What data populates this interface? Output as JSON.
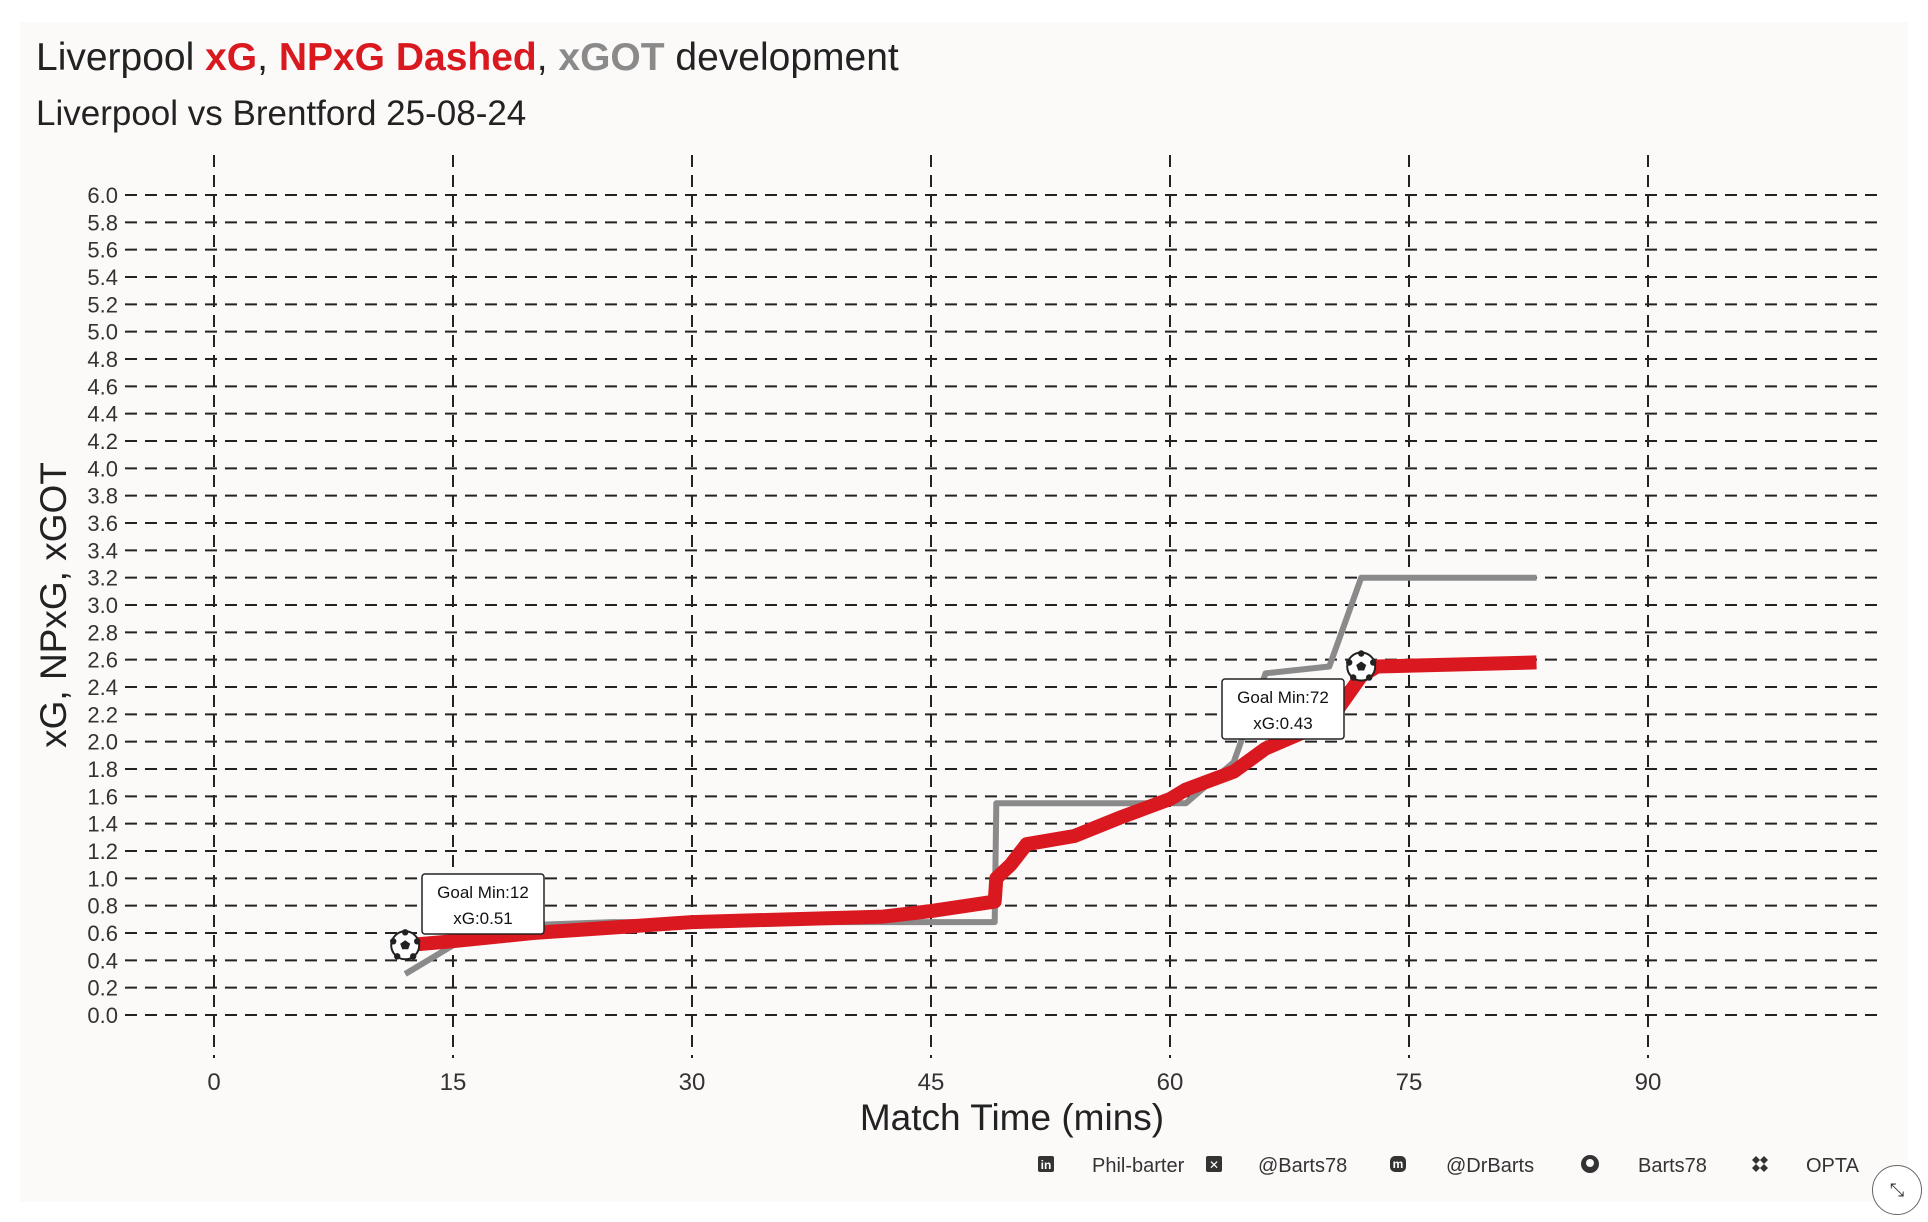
{
  "colors": {
    "xg": "#d9181f",
    "xgot": "#8a8a8a",
    "text": "#222222",
    "grid": "#222222",
    "background": "#fcf9f9"
  },
  "header": {
    "title_parts": [
      {
        "text": "Liverpool ",
        "color": "#222222",
        "bold": false
      },
      {
        "text": "xG",
        "color": "#d9181f",
        "bold": true
      },
      {
        "text": ", ",
        "color": "#222222",
        "bold": false
      },
      {
        "text": "NPxG Dashed",
        "color": "#d9181f",
        "bold": true
      },
      {
        "text": ", ",
        "color": "#222222",
        "bold": false
      },
      {
        "text": "xGOT",
        "color": "#8a8a8a",
        "bold": true
      },
      {
        "text": " development",
        "color": "#222222",
        "bold": false
      }
    ],
    "subtitle": "Liverpool vs Brentford 25-08-24"
  },
  "chart_data": {
    "type": "line",
    "title": "Liverpool xG, NPxG Dashed, xGOT development",
    "subtitle": "Liverpool vs Brentford 25-08-24",
    "xlabel": "Match Time (mins)",
    "ylabel": "xG, NPxG, xGOT",
    "xlim": [
      -10,
      105
    ],
    "ylim": [
      0,
      6
    ],
    "x_ticks": [
      0,
      15,
      30,
      45,
      60,
      75,
      90
    ],
    "y_ticks": [
      0.0,
      0.2,
      0.4,
      0.6,
      0.8,
      1.0,
      1.2,
      1.4,
      1.6,
      1.8,
      2.0,
      2.2,
      2.4,
      2.6,
      2.8,
      3.0,
      3.2,
      3.4,
      3.6,
      3.8,
      4.0,
      4.2,
      4.4,
      4.6,
      4.8,
      5.0,
      5.2,
      5.4,
      5.6,
      5.8,
      6.0
    ],
    "grid": true,
    "grid_style": "dashed",
    "series": [
      {
        "color": "#d9181f",
        "points": [
          [
            12,
            0.51
          ],
          [
            15,
            0.54
          ],
          [
            20,
            0.6
          ],
          [
            30,
            0.68
          ],
          [
            42,
            0.72
          ],
          [
            45,
            0.76
          ],
          [
            49,
            0.83
          ],
          [
            49.1,
            1.0
          ],
          [
            50,
            1.1
          ],
          [
            51,
            1.25
          ],
          [
            54,
            1.31
          ],
          [
            57,
            1.45
          ],
          [
            60,
            1.58
          ],
          [
            61,
            1.65
          ],
          [
            64,
            1.78
          ],
          [
            66,
            1.95
          ],
          [
            69,
            2.1
          ],
          [
            70,
            2.15
          ],
          [
            72,
            2.48
          ],
          [
            73,
            2.55
          ],
          [
            83,
            2.58
          ]
        ]
      },
      {
        "color": "#8a8a8a",
        "points": [
          [
            12,
            0.3
          ],
          [
            15,
            0.51
          ],
          [
            18,
            0.65
          ],
          [
            25,
            0.68
          ],
          [
            49,
            0.68
          ],
          [
            49.1,
            1.55
          ],
          [
            61,
            1.55
          ],
          [
            63,
            1.75
          ],
          [
            64,
            1.85
          ],
          [
            66,
            2.5
          ],
          [
            70,
            2.55
          ],
          [
            72,
            3.2
          ],
          [
            83,
            3.2
          ]
        ]
      }
    ],
    "annotations": [
      {
        "line1": "Goal Min:12",
        "line2": "xG:0.51",
        "x": 12,
        "y": 0.51
      },
      {
        "line1": "Goal Min:72",
        "line2": "xG:0.43",
        "x": 72,
        "y": 2.55
      }
    ]
  },
  "footer": {
    "items": [
      {
        "icon": "linkedin-icon",
        "label": "Phil-barter"
      },
      {
        "icon": "x-twitter-icon",
        "label": "@Barts78"
      },
      {
        "icon": "mastodon-icon",
        "label": "@DrBarts"
      },
      {
        "icon": "github-icon",
        "label": "Barts78"
      },
      {
        "icon": "dropbox-icon",
        "label": "OPTA"
      }
    ]
  },
  "expand_button": {
    "icon": "expand-icon",
    "glyph": "⤡"
  }
}
